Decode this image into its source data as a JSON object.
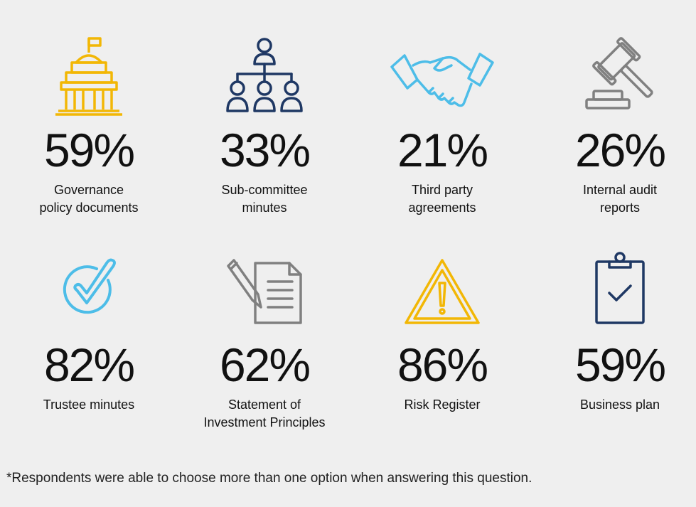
{
  "chart_data": {
    "type": "table",
    "items": [
      {
        "value": "59%",
        "label_lines": [
          "Governance",
          "policy documents"
        ],
        "icon": "government-building-icon",
        "color": "#f2b705"
      },
      {
        "value": "33%",
        "label_lines": [
          "Sub-committee",
          "minutes"
        ],
        "icon": "org-chart-icon",
        "color": "#1f3864"
      },
      {
        "value": "21%",
        "label_lines": [
          "Third party",
          "agreements"
        ],
        "icon": "handshake-icon",
        "color": "#4dbde8"
      },
      {
        "value": "26%",
        "label_lines": [
          "Internal audit",
          "reports"
        ],
        "icon": "gavel-icon",
        "color": "#808080"
      },
      {
        "value": "82%",
        "label_lines": [
          "Trustee minutes"
        ],
        "icon": "checkmark-circle-icon",
        "color": "#4dbde8"
      },
      {
        "value": "62%",
        "label_lines": [
          "Statement of",
          "Investment Principles"
        ],
        "icon": "document-pen-icon",
        "color": "#808080"
      },
      {
        "value": "86%",
        "label_lines": [
          "Risk Register"
        ],
        "icon": "warning-triangle-icon",
        "color": "#f2b705"
      },
      {
        "value": "59%",
        "label_lines": [
          "Business plan"
        ],
        "icon": "clipboard-check-icon",
        "color": "#1f3864"
      }
    ]
  },
  "footnote": "*Respondents were able to choose more than one option when answering this question."
}
